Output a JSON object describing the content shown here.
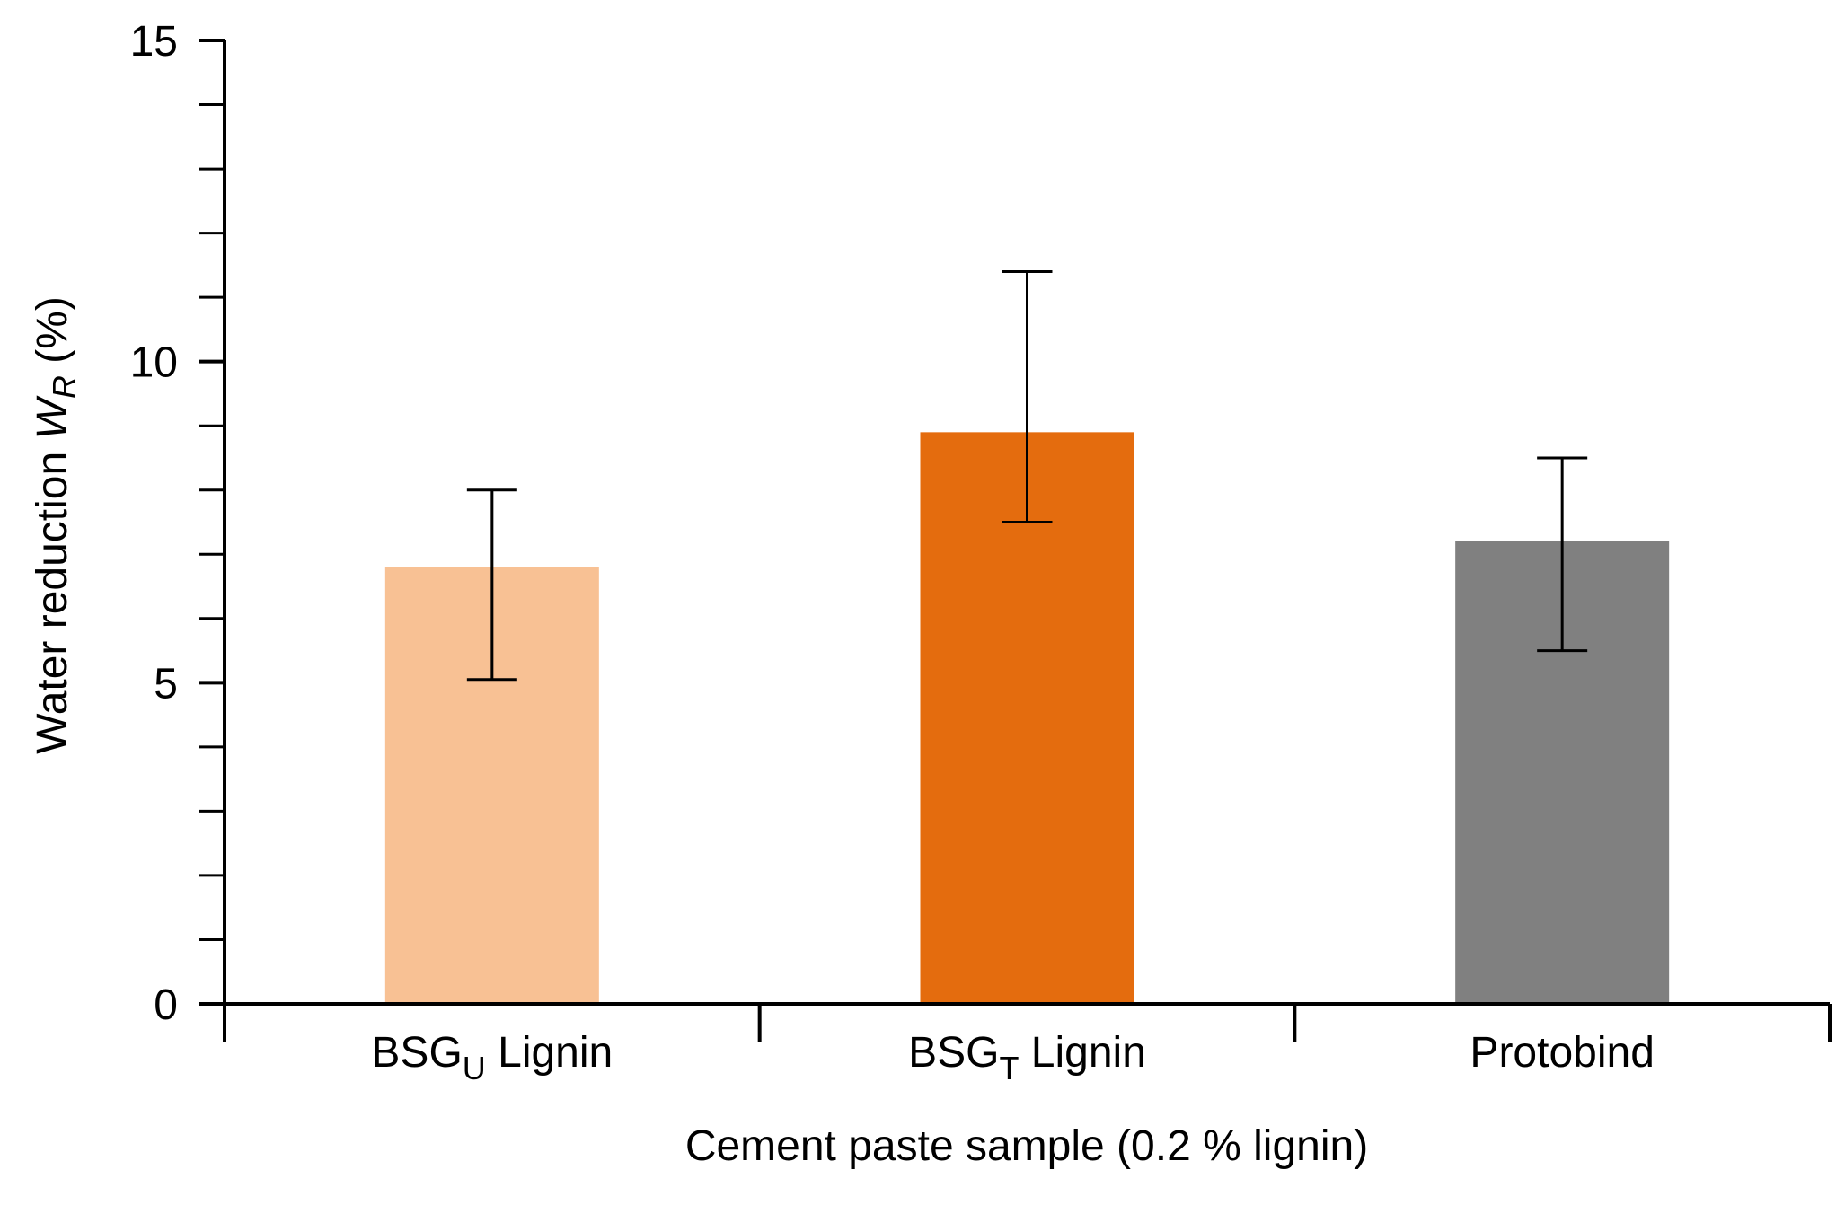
{
  "chart_data": {
    "type": "bar",
    "categories": [
      {
        "base": "BSG",
        "sub": "U",
        "rest": " Lignin"
      },
      {
        "base": "BSG",
        "sub": "T",
        "rest": " Lignin"
      },
      {
        "base": "Protobind",
        "sub": "",
        "rest": ""
      }
    ],
    "values": [
      6.8,
      8.9,
      7.2
    ],
    "error_low": [
      5.05,
      7.5,
      5.5
    ],
    "error_high": [
      8.0,
      11.4,
      8.5
    ],
    "colors": [
      "#f8c194",
      "#e46c0e",
      "#808080"
    ],
    "ylim": [
      0,
      15
    ],
    "major_ticks": [
      0,
      5,
      10,
      15
    ],
    "minor_tick_step": 1,
    "ylabel": {
      "text": "Water reduction ",
      "var": "W",
      "sub": "R",
      "unit": "  (%)"
    },
    "xlabel": "Cement paste sample (0.2 % lignin)",
    "title": "",
    "grid": false,
    "legend": false
  }
}
